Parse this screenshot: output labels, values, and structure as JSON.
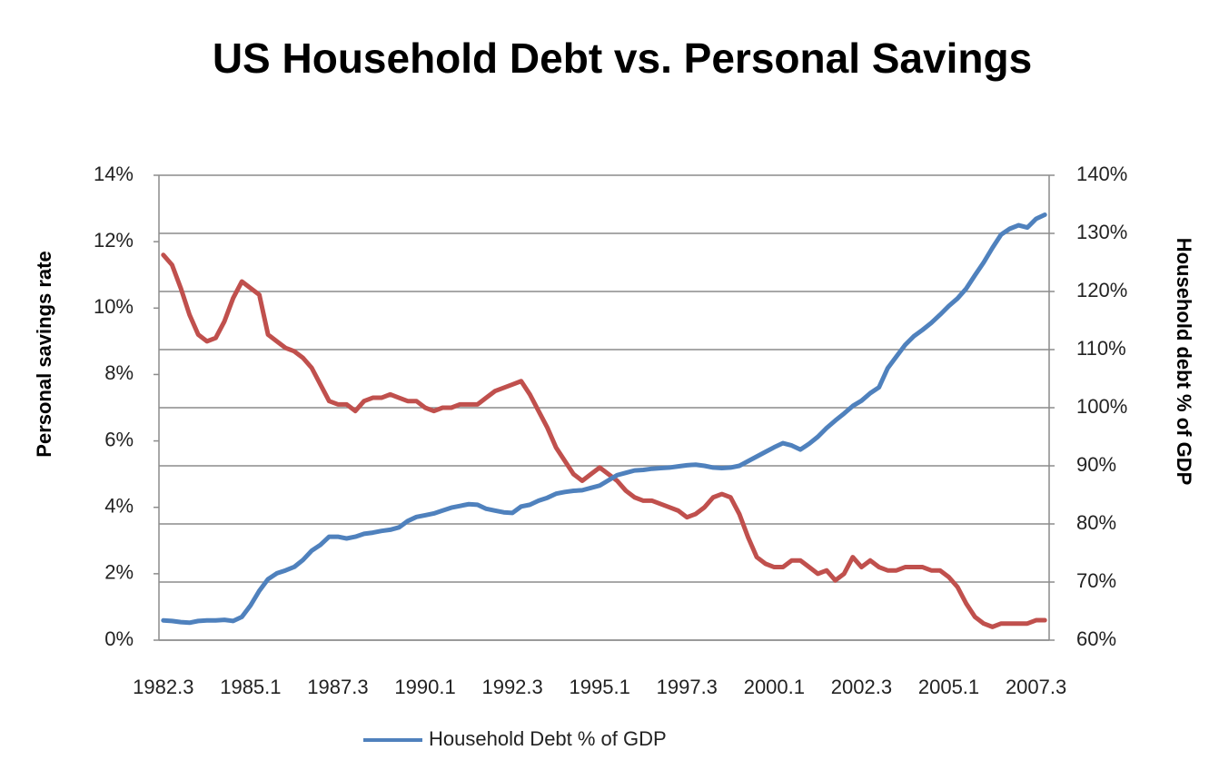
{
  "chart_data": {
    "type": "line",
    "title": "US Household Debt vs. Personal Savings",
    "y_label": "Personal savings rate",
    "y2_label": "Household debt % of GDP",
    "categories": [
      "1982.3",
      null,
      null,
      null,
      null,
      null,
      null,
      null,
      null,
      null,
      "1985.1",
      null,
      null,
      null,
      null,
      null,
      null,
      null,
      null,
      null,
      "1987.3",
      null,
      null,
      null,
      null,
      null,
      null,
      null,
      null,
      null,
      "1990.1",
      null,
      null,
      null,
      null,
      null,
      null,
      null,
      null,
      null,
      "1992.3",
      null,
      null,
      null,
      null,
      null,
      null,
      null,
      null,
      null,
      "1995.1",
      null,
      null,
      null,
      null,
      null,
      null,
      null,
      null,
      null,
      "1997.3",
      null,
      null,
      null,
      null,
      null,
      null,
      null,
      null,
      null,
      "2000.1",
      null,
      null,
      null,
      null,
      null,
      null,
      null,
      null,
      null,
      "2002.3",
      null,
      null,
      null,
      null,
      null,
      null,
      null,
      null,
      null,
      "2005.1",
      null,
      null,
      null,
      null,
      null,
      null,
      null,
      null,
      null,
      "2007.3",
      null
    ],
    "series": [
      {
        "color": "#c0504d",
        "values": [
          11.6,
          11.3,
          10.6,
          9.8,
          9.2,
          9.0,
          9.1,
          9.6,
          10.3,
          10.8,
          10.6,
          10.4,
          9.2,
          9.0,
          8.8,
          8.7,
          8.5,
          8.2,
          7.7,
          7.2,
          7.1,
          7.1,
          6.9,
          7.2,
          7.3,
          7.3,
          7.4,
          7.3,
          7.2,
          7.2,
          7.0,
          6.9,
          7.0,
          7.0,
          7.1,
          7.1,
          7.1,
          7.3,
          7.5,
          7.6,
          7.7,
          7.8,
          7.4,
          6.9,
          6.4,
          5.8,
          5.4,
          5.0,
          4.8,
          5.0,
          5.2,
          5.0,
          4.8,
          4.5,
          4.3,
          4.2,
          4.2,
          4.1,
          4.0,
          3.9,
          3.7,
          3.8,
          4.0,
          4.3,
          4.4,
          4.3,
          3.8,
          3.1,
          2.5,
          2.3,
          2.2,
          2.2,
          2.4,
          2.4,
          2.2,
          2.0,
          2.1,
          1.8,
          2.0,
          2.5,
          2.2,
          2.4,
          2.2,
          2.1,
          2.1,
          2.2,
          2.2,
          2.2,
          2.1,
          2.1,
          1.9,
          1.6,
          1.1,
          0.7,
          0.5,
          0.4,
          0.5,
          0.5,
          0.5,
          0.5,
          0.6,
          0.6
        ]
      },
      {
        "name": "Household Debt % of GDP",
        "color": "#4f81bd",
        "axis": "y2",
        "values": [
          63.4,
          63.3,
          63.1,
          63.0,
          63.3,
          63.4,
          63.4,
          63.5,
          63.3,
          64.0,
          66.0,
          68.5,
          70.5,
          71.5,
          72.0,
          72.6,
          73.8,
          75.4,
          76.4,
          77.8,
          77.8,
          77.5,
          77.8,
          78.3,
          78.5,
          78.8,
          79.0,
          79.4,
          80.5,
          81.2,
          81.5,
          81.8,
          82.3,
          82.8,
          83.1,
          83.4,
          83.3,
          82.6,
          82.3,
          82.0,
          81.9,
          83.0,
          83.3,
          84.0,
          84.5,
          85.2,
          85.5,
          85.7,
          85.8,
          86.2,
          86.6,
          87.5,
          88.4,
          88.8,
          89.2,
          89.3,
          89.5,
          89.6,
          89.7,
          89.9,
          90.1,
          90.2,
          90.0,
          89.7,
          89.6,
          89.7,
          90.0,
          90.8,
          91.6,
          92.4,
          93.2,
          93.9,
          93.5,
          92.8,
          93.8,
          95.0,
          96.5,
          97.8,
          99.0,
          100.3,
          101.2,
          102.5,
          103.5,
          106.8,
          108.8,
          110.8,
          112.3,
          113.4,
          114.6,
          116.0,
          117.5,
          118.8,
          120.5,
          122.8,
          125.0,
          127.5,
          129.8,
          130.8,
          131.4,
          131.0,
          132.5,
          133.2
        ]
      }
    ],
    "ylim": [
      0,
      14
    ],
    "yticks": [
      {
        "value": 0,
        "label": "0%"
      },
      {
        "value": 2,
        "label": "2%"
      },
      {
        "value": 4,
        "label": "4%"
      },
      {
        "value": 6,
        "label": "6%"
      },
      {
        "value": 8,
        "label": "8%"
      },
      {
        "value": 10,
        "label": "10%"
      },
      {
        "value": 12,
        "label": "12%"
      },
      {
        "value": 14,
        "label": "14%"
      }
    ],
    "y2lim": [
      60,
      140
    ],
    "y2ticks": [
      {
        "value": 60,
        "label": "60%"
      },
      {
        "value": 70,
        "label": "70%"
      },
      {
        "value": 80,
        "label": "80%"
      },
      {
        "value": 90,
        "label": "90%"
      },
      {
        "value": 100,
        "label": "100%"
      },
      {
        "value": 110,
        "label": "110%"
      },
      {
        "value": 120,
        "label": "120%"
      },
      {
        "value": 130,
        "label": "130%"
      },
      {
        "value": 140,
        "label": "140%"
      }
    ],
    "grid": "y2",
    "legend": "bottom"
  }
}
